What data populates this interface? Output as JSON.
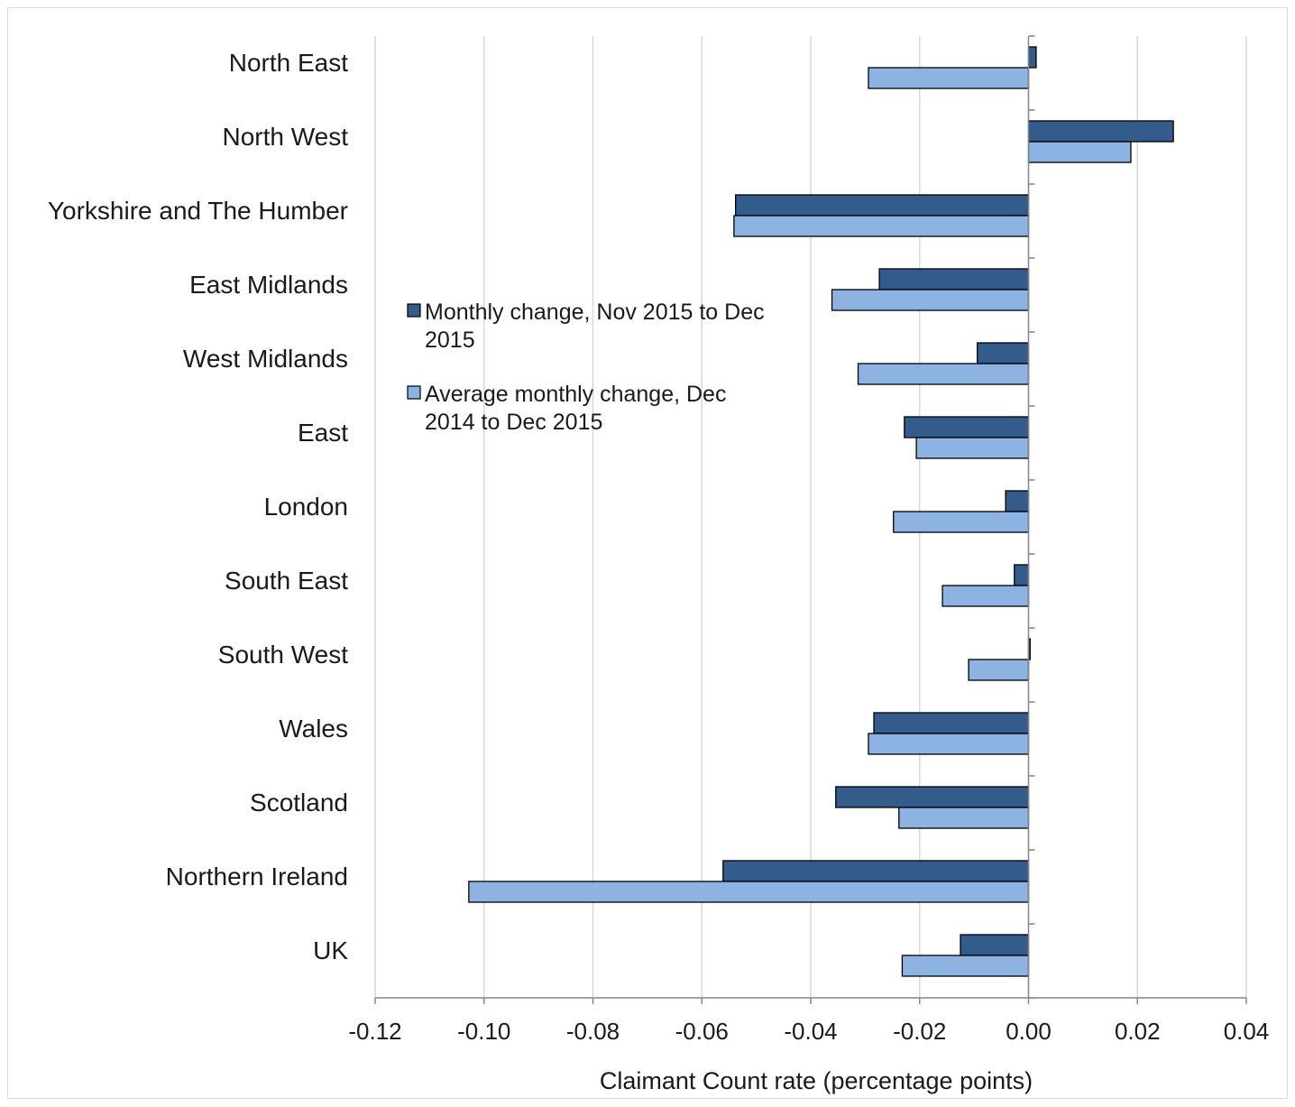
{
  "chart_data": {
    "type": "bar",
    "orientation": "horizontal",
    "categories": [
      "North East",
      "North West",
      "Yorkshire and The Humber",
      "East Midlands",
      "West Midlands",
      "East",
      "London",
      "South East",
      "South West",
      "Wales",
      "Scotland",
      "Northern Ireland",
      "UK"
    ],
    "series": [
      {
        "name": "Monthly change, Nov 2015 to Dec 2015",
        "color": "#335c8c",
        "values": [
          0.0014,
          0.0266,
          -0.0538,
          -0.0274,
          -0.0094,
          -0.0228,
          -0.0042,
          -0.0026,
          0.0003,
          -0.0284,
          -0.0354,
          -0.0561,
          -0.0125
        ]
      },
      {
        "name": "Average monthly change, Dec 2014 to Dec 2015",
        "color": "#8db3e2",
        "values": [
          -0.0294,
          0.0188,
          -0.0541,
          -0.0361,
          -0.0313,
          -0.0206,
          -0.0248,
          -0.0158,
          -0.011,
          -0.0294,
          -0.0238,
          -0.1028,
          -0.0232
        ]
      }
    ],
    "legend_lines": [
      [
        "Monthly change, Nov 2015 to Dec",
        "2015"
      ],
      [
        "Average monthly change, Dec",
        "2014 to Dec 2015"
      ]
    ],
    "xlim": [
      -0.12,
      0.04
    ],
    "xticks": [
      -0.12,
      -0.1,
      -0.08,
      -0.06,
      -0.04,
      -0.02,
      0.0,
      0.02,
      0.04
    ],
    "xtick_labels": [
      "-0.12",
      "-0.10",
      "-0.08",
      "-0.06",
      "-0.04",
      "-0.02",
      "0.00",
      "0.02",
      "0.04"
    ],
    "xlabel": "Claimant Count rate  (percentage points)",
    "ylabel": "",
    "grid": "vertical",
    "legend_position": "upper-middle"
  }
}
